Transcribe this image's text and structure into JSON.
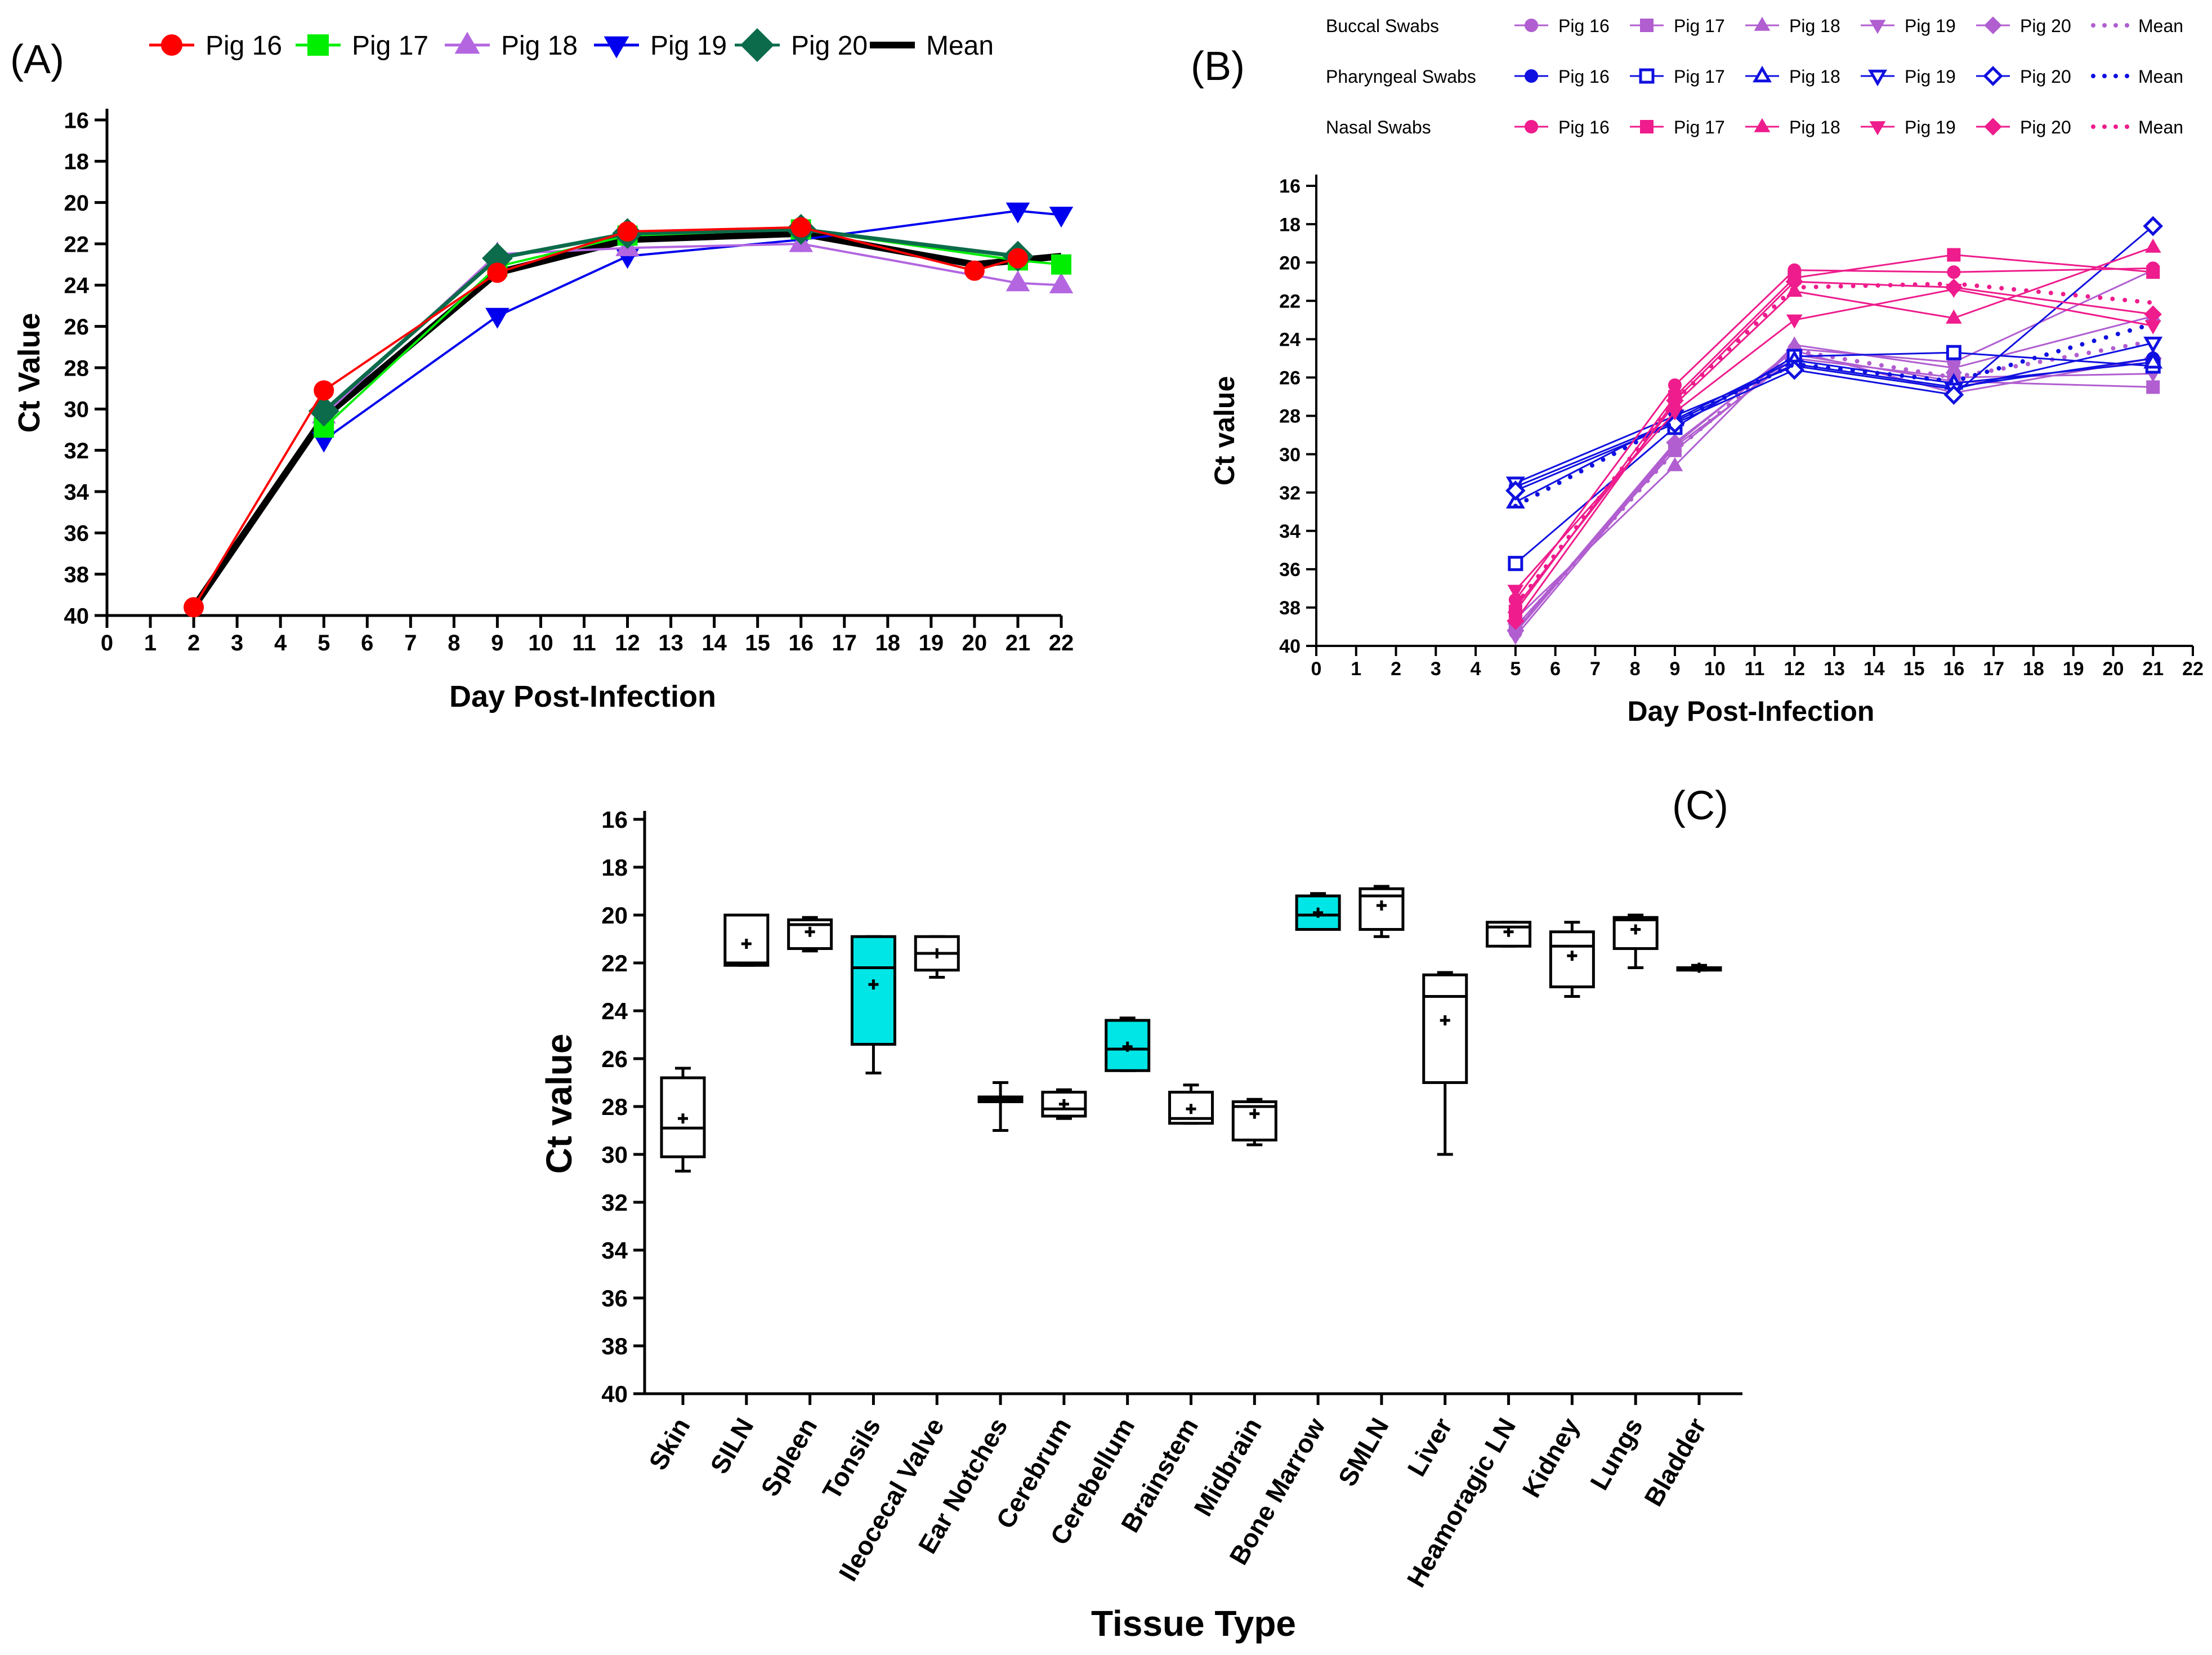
{
  "chart_data": [
    {
      "panel_label": "(A)",
      "type": "line",
      "xlabel": "Day Post-Infection",
      "ylabel": "Ct Value",
      "xlim": [
        0,
        22
      ],
      "ylim": [
        40,
        16
      ],
      "y_inverted": true,
      "xticks": [
        0,
        1,
        2,
        3,
        4,
        5,
        6,
        7,
        8,
        9,
        10,
        11,
        12,
        13,
        14,
        15,
        16,
        17,
        18,
        19,
        20,
        21,
        22
      ],
      "yticks": [
        16,
        18,
        20,
        22,
        24,
        26,
        28,
        30,
        32,
        34,
        36,
        38,
        40
      ],
      "legend": [
        "Pig 16",
        "Pig 17",
        "Pig 18",
        "Pig 19",
        "Pig 20",
        "Mean"
      ],
      "series": [
        {
          "name": "Pig 16",
          "color": "#ff0000",
          "marker": "circle",
          "points": [
            [
              2,
              39.6
            ],
            [
              5,
              29.1
            ],
            [
              9,
              23.4
            ],
            [
              12,
              21.4
            ],
            [
              16,
              21.2
            ],
            [
              20,
              23.3
            ],
            [
              21,
              22.7
            ]
          ]
        },
        {
          "name": "Pig 17",
          "color": "#00ee00",
          "marker": "square",
          "points": [
            [
              5,
              30.9
            ],
            [
              9,
              23.1
            ],
            [
              12,
              21.6
            ],
            [
              16,
              21.3
            ],
            [
              21,
              22.8
            ],
            [
              22,
              23.0
            ]
          ]
        },
        {
          "name": "Pig 18",
          "color": "#b366e0",
          "marker": "triangle-up",
          "points": [
            [
              5,
              30.3
            ],
            [
              9,
              22.5
            ],
            [
              12,
              22.2
            ],
            [
              16,
              22.0
            ],
            [
              21,
              23.9
            ],
            [
              22,
              24.0
            ]
          ]
        },
        {
          "name": "Pig 19",
          "color": "#0000ee",
          "marker": "triangle-down",
          "points": [
            [
              5,
              31.5
            ],
            [
              9,
              25.5
            ],
            [
              12,
              22.6
            ],
            [
              16,
              21.8
            ],
            [
              21,
              20.4
            ],
            [
              22,
              20.6
            ]
          ]
        },
        {
          "name": "Pig 20",
          "color": "#0b6b4a",
          "marker": "diamond",
          "points": [
            [
              5,
              30.1
            ],
            [
              9,
              22.7
            ],
            [
              12,
              21.5
            ],
            [
              16,
              21.3
            ],
            [
              21,
              22.6
            ]
          ]
        },
        {
          "name": "Mean",
          "color": "#000000",
          "marker": "none",
          "points": [
            [
              2,
              39.6
            ],
            [
              5,
              30.4
            ],
            [
              9,
              23.4
            ],
            [
              12,
              21.8
            ],
            [
              16,
              21.5
            ],
            [
              20,
              23.0
            ],
            [
              22,
              22.6
            ]
          ]
        }
      ]
    },
    {
      "panel_label": "(B)",
      "type": "line",
      "xlabel": "Day Post-Infection",
      "ylabel": "Ct value",
      "xlim": [
        0,
        22
      ],
      "ylim": [
        40,
        16
      ],
      "y_inverted": true,
      "xticks": [
        0,
        1,
        2,
        3,
        4,
        5,
        6,
        7,
        8,
        9,
        10,
        11,
        12,
        13,
        14,
        15,
        16,
        17,
        18,
        19,
        20,
        21,
        22
      ],
      "yticks": [
        16,
        18,
        20,
        22,
        24,
        26,
        28,
        30,
        32,
        34,
        36,
        38,
        40
      ],
      "legend_groups": [
        {
          "group": "Buccal Swabs",
          "color": "#b05ed0",
          "entries": [
            "Pig 16",
            "Pig 17",
            "Pig 18",
            "Pig 19",
            "Pig 20",
            "Mean"
          ]
        },
        {
          "group": "Pharyngeal Swabs",
          "color": "#1010e0",
          "entries": [
            "Pig 16",
            "Pig 17",
            "Pig 18",
            "Pig 19",
            "Pig 20",
            "Mean"
          ]
        },
        {
          "group": "Nasal Swabs",
          "color": "#ee1c8c",
          "entries": [
            "Pig 16",
            "Pig 17",
            "Pig 18",
            "Pig 19",
            "Pig 20",
            "Mean"
          ]
        }
      ],
      "series": [
        {
          "group": "Buccal Swabs",
          "name": "Pig 16",
          "color": "#b05ed0",
          "marker": "circle",
          "points": [
            [
              5,
              39.3
            ],
            [
              9,
              29.5
            ],
            [
              12,
              24.5
            ],
            [
              16,
              25.2
            ],
            [
              21,
              20.4
            ]
          ]
        },
        {
          "group": "Buccal Swabs",
          "name": "Pig 17",
          "color": "#b05ed0",
          "marker": "square",
          "points": [
            [
              5,
              39.0
            ],
            [
              9,
              29.8
            ],
            [
              12,
              24.8
            ],
            [
              16,
              26.2
            ],
            [
              21,
              26.5
            ]
          ]
        },
        {
          "group": "Buccal Swabs",
          "name": "Pig 18",
          "color": "#b05ed0",
          "marker": "triangle-up",
          "points": [
            [
              5,
              38.6
            ],
            [
              9,
              30.6
            ],
            [
              12,
              24.3
            ],
            [
              16,
              25.5
            ],
            [
              21,
              22.8
            ]
          ]
        },
        {
          "group": "Buccal Swabs",
          "name": "Pig 19",
          "color": "#b05ed0",
          "marker": "triangle-down",
          "points": [
            [
              5,
              39.5
            ],
            [
              9,
              29.6
            ],
            [
              12,
              25.0
            ],
            [
              16,
              26.0
            ],
            [
              21,
              25.8
            ]
          ]
        },
        {
          "group": "Buccal Swabs",
          "name": "Pig 20",
          "color": "#b05ed0",
          "marker": "diamond",
          "points": [
            [
              5,
              39.2
            ],
            [
              9,
              29.4
            ],
            [
              12,
              24.6
            ],
            [
              16,
              26.8
            ],
            [
              21,
              25.0
            ]
          ]
        },
        {
          "group": "Buccal Swabs",
          "name": "Mean",
          "color": "#b05ed0",
          "marker": "none",
          "dotted": true,
          "points": [
            [
              5,
              39.1
            ],
            [
              9,
              29.8
            ],
            [
              12,
              24.6
            ],
            [
              16,
              26.0
            ],
            [
              21,
              24.1
            ]
          ]
        },
        {
          "group": "Pharyngeal Swabs",
          "name": "Pig 16",
          "color": "#1010e0",
          "marker": "circle",
          "points": [
            [
              5,
              31.7
            ],
            [
              9,
              28.3
            ],
            [
              12,
              25.3
            ],
            [
              16,
              26.5
            ],
            [
              21,
              25.0
            ]
          ]
        },
        {
          "group": "Pharyngeal Swabs",
          "name": "Pig 17",
          "color": "#1010e0",
          "marker": "open-square",
          "points": [
            [
              5,
              35.7
            ],
            [
              9,
              28.6
            ],
            [
              12,
              24.9
            ],
            [
              16,
              24.7
            ],
            [
              21,
              25.4
            ]
          ]
        },
        {
          "group": "Pharyngeal Swabs",
          "name": "Pig 18",
          "color": "#1010e0",
          "marker": "open-triangle-up",
          "points": [
            [
              5,
              32.5
            ],
            [
              9,
              28.2
            ],
            [
              12,
              25.1
            ],
            [
              16,
              26.3
            ],
            [
              21,
              25.2
            ]
          ]
        },
        {
          "group": "Pharyngeal Swabs",
          "name": "Pig 19",
          "color": "#1010e0",
          "marker": "open-triangle-down",
          "points": [
            [
              5,
              31.5
            ],
            [
              9,
              28.0
            ],
            [
              12,
              25.4
            ],
            [
              16,
              26.6
            ],
            [
              21,
              24.2
            ]
          ]
        },
        {
          "group": "Pharyngeal Swabs",
          "name": "Pig 20",
          "color": "#1010e0",
          "marker": "open-diamond",
          "points": [
            [
              5,
              31.9
            ],
            [
              9,
              28.4
            ],
            [
              12,
              25.6
            ],
            [
              16,
              26.9
            ],
            [
              21,
              18.1
            ]
          ]
        },
        {
          "group": "Pharyngeal Swabs",
          "name": "Mean",
          "color": "#1010e0",
          "marker": "none",
          "dotted": true,
          "points": [
            [
              5,
              32.7
            ],
            [
              9,
              28.3
            ],
            [
              12,
              25.3
            ],
            [
              16,
              26.2
            ],
            [
              21,
              23.2
            ]
          ]
        },
        {
          "group": "Nasal Swabs",
          "name": "Pig 16",
          "color": "#ee1c8c",
          "marker": "circle",
          "points": [
            [
              5,
              37.6
            ],
            [
              9,
              26.4
            ],
            [
              12,
              20.4
            ],
            [
              16,
              20.5
            ],
            [
              21,
              20.3
            ]
          ]
        },
        {
          "group": "Nasal Swabs",
          "name": "Pig 17",
          "color": "#ee1c8c",
          "marker": "square",
          "points": [
            [
              5,
              38.2
            ],
            [
              9,
              27.0
            ],
            [
              12,
              20.8
            ],
            [
              16,
              19.6
            ],
            [
              21,
              20.5
            ]
          ]
        },
        {
          "group": "Nasal Swabs",
          "name": "Pig 18",
          "color": "#ee1c8c",
          "marker": "triangle-up",
          "points": [
            [
              5,
              38.0
            ],
            [
              9,
              27.4
            ],
            [
              12,
              21.5
            ],
            [
              16,
              22.9
            ],
            [
              21,
              19.2
            ]
          ]
        },
        {
          "group": "Nasal Swabs",
          "name": "Pig 19",
          "color": "#ee1c8c",
          "marker": "triangle-down",
          "points": [
            [
              5,
              37.1
            ],
            [
              9,
              27.8
            ],
            [
              12,
              23.0
            ],
            [
              16,
              21.4
            ],
            [
              21,
              23.3
            ]
          ]
        },
        {
          "group": "Nasal Swabs",
          "name": "Pig 20",
          "color": "#ee1c8c",
          "marker": "diamond",
          "points": [
            [
              5,
              38.7
            ],
            [
              9,
              27.2
            ],
            [
              12,
              21.0
            ],
            [
              16,
              21.3
            ],
            [
              21,
              22.7
            ]
          ]
        },
        {
          "group": "Nasal Swabs",
          "name": "Mean",
          "color": "#ee1c8c",
          "marker": "none",
          "dotted": true,
          "points": [
            [
              5,
              37.9
            ],
            [
              9,
              27.2
            ],
            [
              12,
              21.3
            ],
            [
              16,
              21.1
            ],
            [
              21,
              22.1
            ]
          ]
        }
      ]
    },
    {
      "panel_label": "(C)",
      "type": "box",
      "xlabel": "Tissue Type",
      "ylabel": "Ct value",
      "ylim": [
        40,
        16
      ],
      "y_inverted": true,
      "yticks": [
        16,
        18,
        20,
        22,
        24,
        26,
        28,
        30,
        32,
        34,
        36,
        38,
        40
      ],
      "highlight_color": "#00e5e5",
      "boxes": [
        {
          "label": "Skin",
          "min": 26.4,
          "q1": 26.8,
          "median": 28.9,
          "q3": 30.1,
          "max": 30.7,
          "mean": 28.5,
          "highlight": false
        },
        {
          "label": "SILN",
          "min": 20.0,
          "q1": 20.0,
          "median": 22.0,
          "q3": 22.1,
          "max": 22.1,
          "mean": 21.2,
          "highlight": false
        },
        {
          "label": "Spleen",
          "min": 20.1,
          "q1": 20.2,
          "median": 20.4,
          "q3": 21.4,
          "max": 21.5,
          "mean": 20.7,
          "highlight": false
        },
        {
          "label": "Tonsils",
          "min": 20.9,
          "q1": 20.9,
          "median": 22.2,
          "q3": 25.4,
          "max": 26.6,
          "mean": 22.9,
          "highlight": true
        },
        {
          "label": "Ileocecal Valve",
          "min": 20.9,
          "q1": 20.9,
          "median": 21.6,
          "q3": 22.3,
          "max": 22.6,
          "mean": 21.6,
          "highlight": false
        },
        {
          "label": "Ear Notches",
          "min": 27.0,
          "q1": 27.6,
          "median": 27.7,
          "q3": 27.8,
          "max": 29.0,
          "mean": 27.7,
          "highlight": false
        },
        {
          "label": "Cerebrum",
          "min": 27.3,
          "q1": 27.4,
          "median": 28.1,
          "q3": 28.4,
          "max": 28.5,
          "mean": 27.9,
          "highlight": false
        },
        {
          "label": "Cerebellum",
          "min": 24.3,
          "q1": 24.4,
          "median": 25.6,
          "q3": 26.5,
          "max": 26.5,
          "mean": 25.5,
          "highlight": true
        },
        {
          "label": "Brainstem",
          "min": 27.1,
          "q1": 27.4,
          "median": 28.5,
          "q3": 28.7,
          "max": 28.7,
          "mean": 28.1,
          "highlight": false
        },
        {
          "label": "Midbrain",
          "min": 27.7,
          "q1": 27.8,
          "median": 28.0,
          "q3": 29.4,
          "max": 29.6,
          "mean": 28.3,
          "highlight": false
        },
        {
          "label": "Bone Marrow",
          "min": 19.1,
          "q1": 19.2,
          "median": 20.0,
          "q3": 20.6,
          "max": 20.6,
          "mean": 19.9,
          "highlight": true
        },
        {
          "label": "SMLN",
          "min": 18.8,
          "q1": 18.9,
          "median": 19.2,
          "q3": 20.6,
          "max": 20.9,
          "mean": 19.6,
          "highlight": false
        },
        {
          "label": "Liver",
          "min": 22.4,
          "q1": 22.5,
          "median": 23.4,
          "q3": 27.0,
          "max": 30.0,
          "mean": 24.4,
          "highlight": false
        },
        {
          "label": "Heamoragic LN",
          "min": 20.3,
          "q1": 20.3,
          "median": 20.5,
          "q3": 21.3,
          "max": 21.3,
          "mean": 20.7,
          "highlight": false
        },
        {
          "label": "Kidney",
          "min": 20.3,
          "q1": 20.7,
          "median": 21.3,
          "q3": 23.0,
          "max": 23.4,
          "mean": 21.7,
          "highlight": false
        },
        {
          "label": "Lungs",
          "min": 20.0,
          "q1": 20.1,
          "median": 20.2,
          "q3": 21.4,
          "max": 22.2,
          "mean": 20.6,
          "highlight": false
        },
        {
          "label": "Bladder",
          "min": 22.1,
          "q1": 22.2,
          "median": 22.2,
          "q3": 22.3,
          "max": 22.3,
          "mean": 22.2,
          "highlight": false
        }
      ]
    }
  ]
}
